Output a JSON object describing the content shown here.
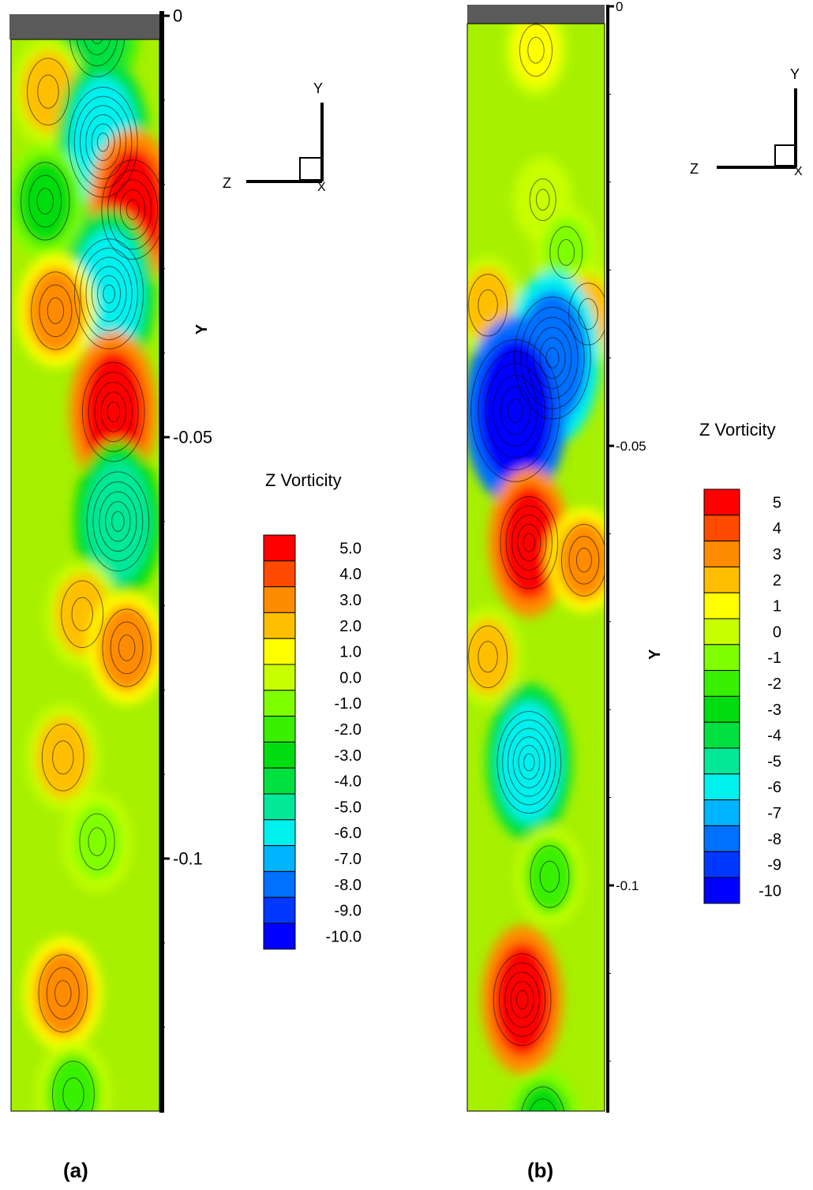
{
  "chart_data": [
    {
      "type": "heatmap",
      "panel_label": "(a)",
      "field_name": "Z Vorticity",
      "ylabel": "Y",
      "ylim": [
        -0.13,
        0
      ],
      "y_ticks": [
        "0",
        "-0.05",
        "-0.1"
      ],
      "axis_triad": {
        "vertical": "Y",
        "horizontal": "Z",
        "normal": "X"
      },
      "legend": {
        "title": "Z Vorticity",
        "levels": [
          "5.0",
          "4.0",
          "3.0",
          "2.0",
          "1.0",
          "0.0",
          "-1.0",
          "-2.0",
          "-3.0",
          "-4.0",
          "-5.0",
          "-6.0",
          "-7.0",
          "-8.0",
          "-9.0",
          "-10.0"
        ],
        "colors": [
          "#ff0000",
          "#ff4a00",
          "#ff8c00",
          "#ffbf00",
          "#ffff00",
          "#c8ff00",
          "#80ff00",
          "#38f000",
          "#00dd10",
          "#00e040",
          "#00e898",
          "#00f0ee",
          "#00b4ff",
          "#0070ff",
          "#0038ff",
          "#0000ff"
        ]
      },
      "features": [
        {
          "y": -0.002,
          "z": 0.58,
          "value": -4
        },
        {
          "y": -0.009,
          "z": 0.25,
          "value": 2
        },
        {
          "y": -0.015,
          "z": 0.62,
          "value": -6
        },
        {
          "y": -0.023,
          "z": 0.82,
          "value": 5
        },
        {
          "y": -0.022,
          "z": 0.23,
          "value": -3
        },
        {
          "y": -0.033,
          "z": 0.66,
          "value": -6
        },
        {
          "y": -0.035,
          "z": 0.3,
          "value": 3
        },
        {
          "y": -0.047,
          "z": 0.69,
          "value": 5
        },
        {
          "y": -0.06,
          "z": 0.72,
          "value": -5
        },
        {
          "y": -0.071,
          "z": 0.48,
          "value": 2
        },
        {
          "y": -0.075,
          "z": 0.78,
          "value": 3
        },
        {
          "y": -0.088,
          "z": 0.35,
          "value": 2
        },
        {
          "y": -0.098,
          "z": 0.58,
          "value": -1
        },
        {
          "y": -0.116,
          "z": 0.35,
          "value": 3
        },
        {
          "y": -0.128,
          "z": 0.42,
          "value": -2
        }
      ]
    },
    {
      "type": "heatmap",
      "panel_label": "(b)",
      "field_name": "Z Vorticity",
      "ylabel": "Y",
      "ylim": [
        -0.13,
        0
      ],
      "y_ticks": [
        "0",
        "-0.05",
        "-0.1"
      ],
      "axis_triad": {
        "vertical": "Y",
        "horizontal": "Z",
        "normal": "X"
      },
      "legend": {
        "title": "Z Vorticity",
        "levels": [
          "5",
          "4",
          "3",
          "2",
          "1",
          "0",
          "-1",
          "-2",
          "-3",
          "-4",
          "-5",
          "-6",
          "-7",
          "-8",
          "-9",
          "-10"
        ],
        "colors": [
          "#ff0000",
          "#ff4a00",
          "#ff8c00",
          "#ffbf00",
          "#ffff00",
          "#c8ff00",
          "#80ff00",
          "#38f000",
          "#00dd10",
          "#00e040",
          "#00e898",
          "#00f0ee",
          "#00b4ff",
          "#0070ff",
          "#0038ff",
          "#0000ff"
        ]
      },
      "features": [
        {
          "y": -0.005,
          "z": 0.5,
          "value": 1
        },
        {
          "y": -0.022,
          "z": 0.55,
          "value": 0
        },
        {
          "y": -0.028,
          "z": 0.72,
          "value": -1
        },
        {
          "y": -0.034,
          "z": 0.15,
          "value": 2
        },
        {
          "y": -0.035,
          "z": 0.88,
          "value": 2
        },
        {
          "y": -0.04,
          "z": 0.62,
          "value": -8
        },
        {
          "y": -0.046,
          "z": 0.35,
          "value": -10
        },
        {
          "y": -0.061,
          "z": 0.45,
          "value": 5
        },
        {
          "y": -0.063,
          "z": 0.85,
          "value": 3
        },
        {
          "y": -0.074,
          "z": 0.15,
          "value": 2
        },
        {
          "y": -0.086,
          "z": 0.45,
          "value": -6
        },
        {
          "y": -0.099,
          "z": 0.6,
          "value": -2
        },
        {
          "y": -0.113,
          "z": 0.4,
          "value": 5
        },
        {
          "y": -0.127,
          "z": 0.55,
          "value": -3
        }
      ]
    }
  ]
}
